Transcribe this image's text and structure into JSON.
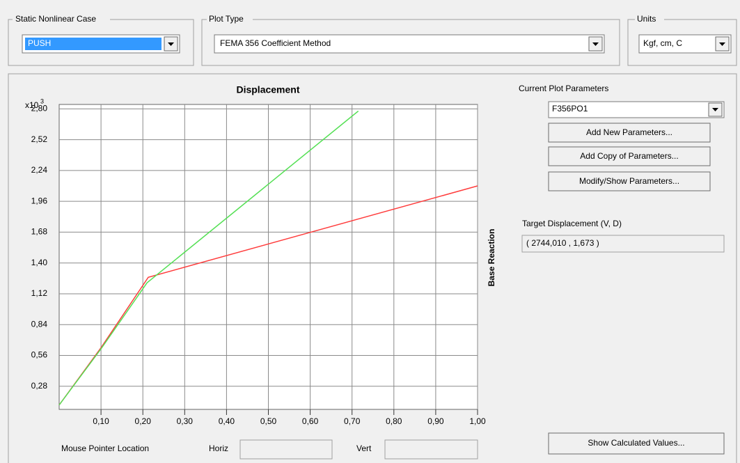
{
  "static_case": {
    "label": "Static Nonlinear Case",
    "value": "PUSH"
  },
  "plot_type": {
    "label": "Plot Type",
    "value": "FEMA 356 Coefficient Method"
  },
  "units": {
    "label": "Units",
    "value": "Kgf, cm, C"
  },
  "chart_data": {
    "type": "line",
    "title": "Displacement",
    "y_label": "Base Reaction",
    "y_multiplier": "x10",
    "y_multiplier_exponent": "3",
    "xlim": [
      0,
      1.0
    ],
    "ylim": [
      0.07,
      2.84
    ],
    "grid": true,
    "xticks": [
      {
        "value": 0.1,
        "label": "0,10"
      },
      {
        "value": 0.2,
        "label": "0,20"
      },
      {
        "value": 0.3,
        "label": "0,30"
      },
      {
        "value": 0.4,
        "label": "0,40"
      },
      {
        "value": 0.5,
        "label": "0,50"
      },
      {
        "value": 0.6,
        "label": "0,60"
      },
      {
        "value": 0.7,
        "label": "0,70"
      },
      {
        "value": 0.8,
        "label": "0,80"
      },
      {
        "value": 0.9,
        "label": "0,90"
      },
      {
        "value": 1.0,
        "label": "1,00"
      }
    ],
    "yticks": [
      {
        "value": 0.28,
        "label": "0,28"
      },
      {
        "value": 0.56,
        "label": "0,56"
      },
      {
        "value": 0.84,
        "label": "0,84"
      },
      {
        "value": 1.12,
        "label": "1,12"
      },
      {
        "value": 1.4,
        "label": "1,40"
      },
      {
        "value": 1.68,
        "label": "1,68"
      },
      {
        "value": 1.96,
        "label": "1,96"
      },
      {
        "value": 2.24,
        "label": "2,24"
      },
      {
        "value": 2.52,
        "label": "2,52"
      },
      {
        "value": 2.8,
        "label": "2,80"
      }
    ],
    "series": [
      {
        "color": "#ff3b3b",
        "x": [
          0,
          0.1,
          0.213,
          1.0
        ],
        "values": [
          0.11,
          0.63,
          1.27,
          2.1
        ]
      },
      {
        "color": "#55e055",
        "x": [
          0,
          0.1,
          0.21,
          0.715
        ],
        "values": [
          0.11,
          0.62,
          1.22,
          2.78
        ]
      }
    ]
  },
  "parameters": {
    "label": "Current Plot Parameters",
    "value": "F356PO1",
    "buttons": [
      "Add New Parameters...",
      "Add Copy of Parameters...",
      "Modify/Show Parameters..."
    ]
  },
  "target": {
    "label": "Target Displacement (V, D)",
    "value": "( 2744,010 , 1,673 )"
  },
  "mouse": {
    "label": "Mouse Pointer Location",
    "horiz": "Horiz",
    "vert": "Vert"
  },
  "show_button": "Show Calculated Values..."
}
